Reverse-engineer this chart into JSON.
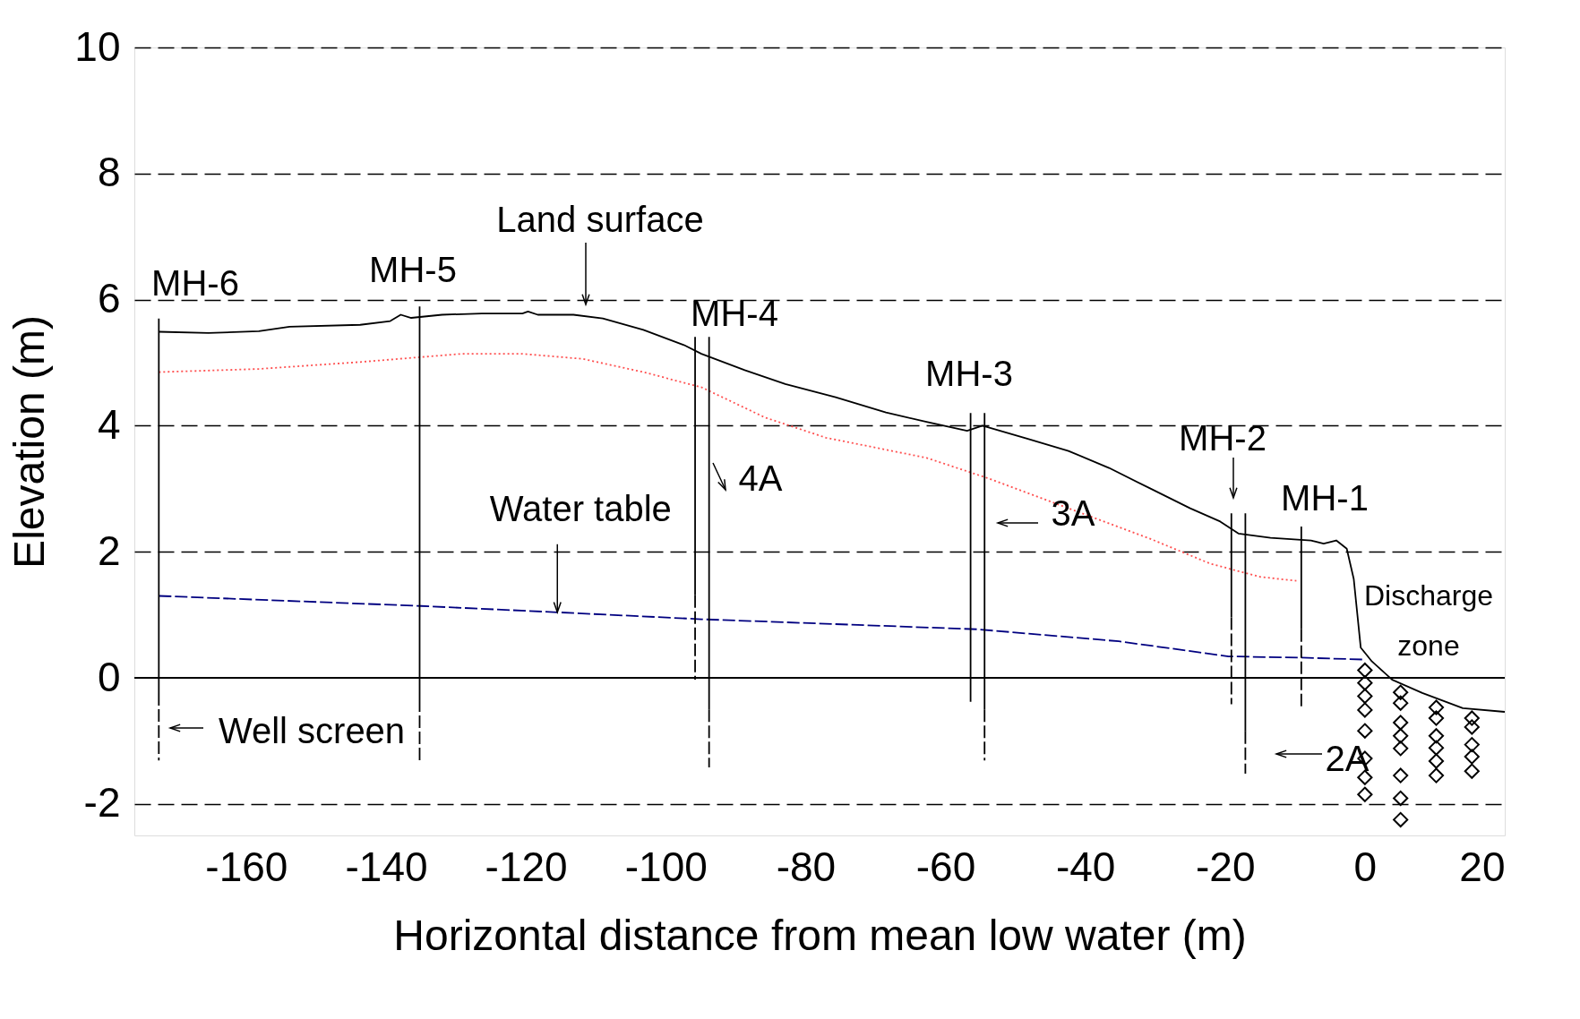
{
  "chart_data": {
    "type": "line",
    "xlabel": "Horizontal distance from mean low water (m)",
    "ylabel": "Elevation (m)",
    "xlim": [
      -176,
      20
    ],
    "ylim": [
      -2.5,
      10
    ],
    "xticks": [
      -160,
      -140,
      -120,
      -100,
      -80,
      -60,
      -40,
      -20,
      0,
      20
    ],
    "yticks": [
      -2,
      0,
      2,
      4,
      6,
      8,
      10
    ],
    "grid": "y",
    "ref_lines": [
      {
        "axis": "y",
        "value": 0,
        "color": "#000000",
        "line_style": "solid"
      }
    ],
    "series": [
      {
        "color": "#000000",
        "line_style": "solid",
        "x": [
          -172.5,
          -165.4,
          -158.2,
          -153.8,
          -143.7,
          -139.4,
          -137.9,
          -136.4,
          -132.0,
          -126.3,
          -120.5,
          -119.7,
          -118.3,
          -113.2,
          -109.0,
          -103.2,
          -97.4,
          -94.9,
          -88.7,
          -82.9,
          -75.7,
          -68.5,
          -62.7,
          -56.9,
          -54.7,
          -48.2,
          -42.4,
          -36.6,
          -30.8,
          -25.0,
          -20.7,
          -18.1,
          -13.5,
          -7.7,
          -5.9,
          -4.1,
          -2.6,
          -1.6,
          -0.6,
          1.0,
          3.9,
          8.2,
          14.0,
          20
        ],
        "values": [
          5.49,
          5.47,
          5.5,
          5.57,
          5.6,
          5.66,
          5.76,
          5.71,
          5.76,
          5.78,
          5.78,
          5.81,
          5.76,
          5.76,
          5.7,
          5.52,
          5.28,
          5.14,
          4.88,
          4.66,
          4.45,
          4.21,
          4.06,
          3.92,
          4.0,
          3.79,
          3.6,
          3.33,
          3.01,
          2.69,
          2.48,
          2.29,
          2.22,
          2.18,
          2.13,
          2.18,
          2.05,
          1.57,
          0.48,
          0.26,
          -0.03,
          -0.24,
          -0.48,
          -0.54
        ]
      },
      {
        "color": "#ff5050",
        "line_style": "dotted",
        "x": [
          -172.5,
          -158.2,
          -143.7,
          -129.2,
          -120.5,
          -111.9,
          -103.2,
          -94.9,
          -85.8,
          -77.1,
          -62.7,
          -54.0,
          -42.4,
          -30.8,
          -22.1,
          -14.9,
          -9.8
        ],
        "values": [
          4.85,
          4.9,
          5.01,
          5.14,
          5.14,
          5.06,
          4.85,
          4.61,
          4.13,
          3.81,
          3.49,
          3.17,
          2.69,
          2.21,
          1.81,
          1.6,
          1.54
        ]
      },
      {
        "color": "#000080",
        "line_style": "dashed",
        "x": [
          -172.5,
          -135.0,
          -115.5,
          -94.9,
          -55.4,
          -35.2,
          -19.5,
          -9.1,
          -0.1
        ],
        "values": [
          1.3,
          1.14,
          1.04,
          0.93,
          0.77,
          0.58,
          0.34,
          0.32,
          0.29
        ]
      },
      {
        "color": "#000000",
        "line_style": "solid",
        "x": [
          -172.5,
          -172.5
        ],
        "values": [
          5.7,
          -0.24
        ]
      },
      {
        "color": "#000000",
        "line_style": "dashed",
        "x": [
          -172.5,
          -172.5
        ],
        "values": [
          -0.24,
          -1.31
        ]
      },
      {
        "color": "#000000",
        "line_style": "solid",
        "x": [
          -135.2,
          -135.2
        ],
        "values": [
          5.89,
          -0.34
        ]
      },
      {
        "color": "#000000",
        "line_style": "dashed",
        "x": [
          -135.2,
          -135.2
        ],
        "values": [
          -0.34,
          -1.31
        ]
      },
      {
        "color": "#000000",
        "line_style": "solid",
        "x": [
          -95.8,
          -95.8
        ],
        "values": [
          5.41,
          1.31
        ]
      },
      {
        "color": "#000000",
        "line_style": "dashed",
        "x": [
          -95.8,
          -95.8
        ],
        "values": [
          1.31,
          -0.03
        ]
      },
      {
        "color": "#000000",
        "line_style": "solid",
        "x": [
          -93.8,
          -93.8
        ],
        "values": [
          5.41,
          -0.5
        ]
      },
      {
        "color": "#000000",
        "line_style": "dashed",
        "x": [
          -93.8,
          -93.8
        ],
        "values": [
          -0.5,
          -1.42
        ]
      },
      {
        "color": "#000000",
        "line_style": "solid",
        "x": [
          -56.4,
          -56.4
        ],
        "values": [
          4.2,
          -0.38
        ]
      },
      {
        "color": "#000000",
        "line_style": "solid",
        "x": [
          -54.4,
          -54.4
        ],
        "values": [
          4.2,
          -0.5
        ]
      },
      {
        "color": "#000000",
        "line_style": "dashed",
        "x": [
          -54.4,
          -54.4
        ],
        "values": [
          -0.5,
          -1.31
        ]
      },
      {
        "color": "#000000",
        "line_style": "solid",
        "x": [
          -19.1,
          -19.1
        ],
        "values": [
          2.61,
          0.96
        ]
      },
      {
        "color": "#000000",
        "line_style": "dashed",
        "x": [
          -19.1,
          -19.1
        ],
        "values": [
          0.96,
          -0.42
        ]
      },
      {
        "color": "#000000",
        "line_style": "solid",
        "x": [
          -17.1,
          -17.1
        ],
        "values": [
          2.61,
          -0.85
        ]
      },
      {
        "color": "#000000",
        "line_style": "dashed",
        "x": [
          -17.1,
          -17.1
        ],
        "values": [
          -0.85,
          -1.52
        ]
      },
      {
        "color": "#000000",
        "line_style": "solid",
        "x": [
          -9.1,
          -9.1
        ],
        "values": [
          2.4,
          0.77
        ]
      },
      {
        "color": "#000000",
        "line_style": "dashed",
        "x": [
          -9.1,
          -9.1
        ],
        "values": [
          0.77,
          -0.45
        ]
      },
      {
        "type": "scatter",
        "color": "#000000",
        "marker": "diamond",
        "x": [
          0,
          0,
          0,
          0,
          0,
          0,
          0,
          0,
          5.1,
          5.1,
          5.1,
          5.1,
          5.1,
          5.1,
          5.1,
          5.1,
          10.2,
          10.2,
          10.2,
          10.2,
          10.2,
          10.2,
          15.3,
          15.3,
          15.3,
          15.3,
          15.3
        ],
        "values": [
          0.12,
          -0.08,
          -0.29,
          -0.51,
          -0.84,
          -1.28,
          -1.58,
          -1.85,
          -0.23,
          -0.4,
          -0.71,
          -0.92,
          -1.12,
          -1.55,
          -1.91,
          -2.25,
          -0.47,
          -0.64,
          -0.92,
          -1.11,
          -1.32,
          -1.55,
          -0.64,
          -0.78,
          -1.06,
          -1.25,
          -1.48
        ]
      }
    ],
    "annotations": [
      "Land surface",
      {
        "text": "Water table",
        "x": -115.5,
        "y": 1.04
      },
      "Well screen",
      "4A",
      "3A",
      "2A",
      "MH-2",
      "MH-6",
      "MH-5",
      "MH-4",
      "MH-3",
      "MH-1",
      "Discharge zone"
    ]
  }
}
